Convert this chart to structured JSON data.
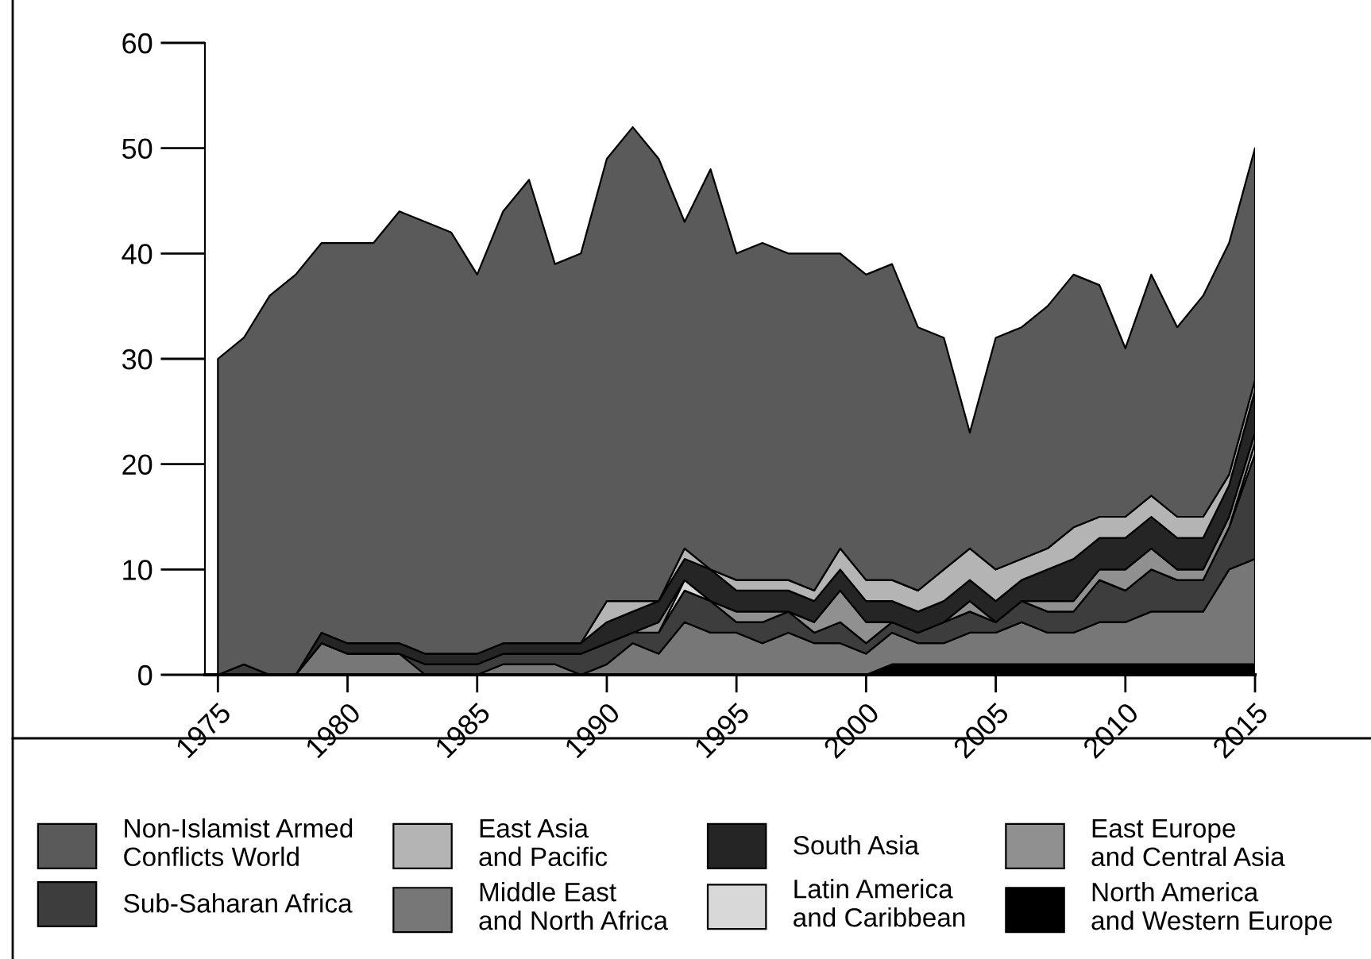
{
  "chart_data": {
    "type": "area",
    "stacked": true,
    "x": [
      1975,
      1976,
      1977,
      1978,
      1979,
      1980,
      1981,
      1982,
      1983,
      1984,
      1985,
      1986,
      1987,
      1988,
      1989,
      1990,
      1991,
      1992,
      1993,
      1994,
      1995,
      1996,
      1997,
      1998,
      1999,
      2000,
      2001,
      2002,
      2003,
      2004,
      2005,
      2006,
      2007,
      2008,
      2009,
      2010,
      2011,
      2012,
      2013,
      2014,
      2015
    ],
    "xlim": [
      1974.5,
      2015
    ],
    "xticks": [
      1975,
      1980,
      1985,
      1990,
      1995,
      2000,
      2005,
      2010,
      2015
    ],
    "ylim": [
      0,
      60
    ],
    "yticks": [
      0,
      10,
      20,
      30,
      40,
      50,
      60
    ],
    "grid": false,
    "legend": "bottom",
    "series": [
      {
        "name": "North America\nand Western Europe",
        "color": "#000000",
        "values": [
          0,
          0,
          0,
          0,
          0,
          0,
          0,
          0,
          0,
          0,
          0,
          0,
          0,
          0,
          0,
          0,
          0,
          0,
          0,
          0,
          0,
          0,
          0,
          0,
          0,
          0,
          1,
          1,
          1,
          1,
          1,
          1,
          1,
          1,
          1,
          1,
          1,
          1,
          1,
          1,
          1
        ]
      },
      {
        "name": "Middle East\nand North Africa",
        "color": "#777777",
        "values": [
          0,
          0,
          0,
          0,
          3,
          2,
          2,
          2,
          0,
          0,
          0,
          1,
          1,
          1,
          0,
          1,
          3,
          2,
          5,
          4,
          4,
          3,
          4,
          3,
          3,
          2,
          3,
          2,
          2,
          3,
          3,
          4,
          3,
          3,
          4,
          4,
          5,
          5,
          5,
          9,
          10
        ]
      },
      {
        "name": "Sub-Saharan Africa",
        "color": "#3d3d3d",
        "values": [
          0,
          1,
          0,
          0,
          0,
          0,
          0,
          0,
          1,
          1,
          1,
          1,
          1,
          1,
          2,
          2,
          1,
          2,
          3,
          3,
          1,
          2,
          2,
          1,
          2,
          1,
          1,
          1,
          2,
          2,
          1,
          2,
          2,
          2,
          4,
          3,
          4,
          3,
          3,
          4,
          10
        ]
      },
      {
        "name": "Latin America\nand Caribbean",
        "color": "#d8d8d8",
        "values": [
          0,
          0,
          0,
          0,
          0,
          0,
          0,
          0,
          0,
          0,
          0,
          0,
          0,
          0,
          0,
          0,
          0,
          0,
          1,
          0,
          0,
          0,
          0,
          0,
          0,
          0,
          0,
          0,
          0,
          0,
          0,
          0,
          0,
          0,
          0,
          0,
          0,
          0,
          0,
          0,
          1
        ]
      },
      {
        "name": "East Europe\nand Central Asia",
        "color": "#909090",
        "values": [
          0,
          0,
          0,
          0,
          0,
          0,
          0,
          0,
          0,
          0,
          0,
          0,
          0,
          0,
          0,
          0,
          0,
          1,
          0,
          0,
          1,
          1,
          0,
          1,
          3,
          2,
          0,
          0,
          0,
          1,
          0,
          0,
          1,
          1,
          1,
          2,
          2,
          1,
          1,
          1,
          1
        ]
      },
      {
        "name": "South Asia",
        "color": "#252525",
        "values": [
          0,
          0,
          0,
          0,
          1,
          1,
          1,
          1,
          1,
          1,
          1,
          1,
          1,
          1,
          1,
          2,
          2,
          2,
          2,
          3,
          2,
          2,
          2,
          2,
          2,
          2,
          2,
          2,
          2,
          2,
          2,
          2,
          3,
          4,
          3,
          3,
          3,
          3,
          3,
          3,
          4
        ]
      },
      {
        "name": "East Asia\nand Pacific",
        "color": "#b4b4b4",
        "values": [
          0,
          0,
          0,
          0,
          0,
          0,
          0,
          0,
          0,
          0,
          0,
          0,
          0,
          0,
          0,
          2,
          1,
          0,
          1,
          0,
          1,
          1,
          1,
          1,
          2,
          2,
          2,
          2,
          3,
          3,
          3,
          2,
          2,
          3,
          2,
          2,
          2,
          2,
          2,
          1,
          1
        ]
      },
      {
        "name": "Non-Islamist Armed\nConflicts World",
        "color": "#5a5a5a",
        "values": [
          30,
          31,
          36,
          38,
          37,
          38,
          38,
          41,
          41,
          40,
          36,
          41,
          44,
          36,
          37,
          42,
          45,
          42,
          31,
          38,
          31,
          32,
          31,
          32,
          28,
          29,
          30,
          25,
          22,
          11,
          22,
          22,
          23,
          24,
          22,
          16,
          21,
          18,
          21,
          22,
          22
        ]
      }
    ]
  }
}
